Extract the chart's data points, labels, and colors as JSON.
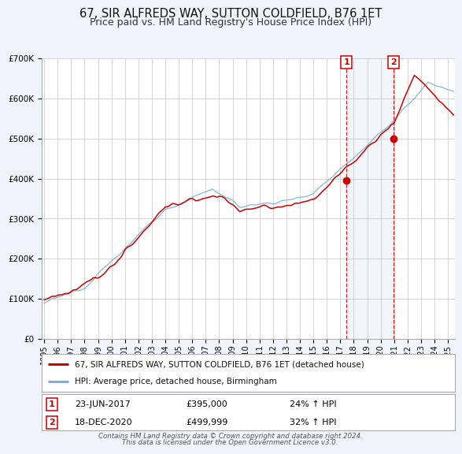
{
  "title": "67, SIR ALFREDS WAY, SUTTON COLDFIELD, B76 1ET",
  "subtitle": "Price paid vs. HM Land Registry's House Price Index (HPI)",
  "ylim": [
    0,
    700000
  ],
  "yticks": [
    0,
    100000,
    200000,
    300000,
    400000,
    500000,
    600000,
    700000
  ],
  "ytick_labels": [
    "£0",
    "£100K",
    "£200K",
    "£300K",
    "£400K",
    "£500K",
    "£600K",
    "£700K"
  ],
  "xlim_start": 1994.8,
  "xlim_end": 2025.5,
  "xtick_years": [
    1995,
    1996,
    1997,
    1998,
    1999,
    2000,
    2001,
    2002,
    2003,
    2004,
    2005,
    2006,
    2007,
    2008,
    2009,
    2010,
    2011,
    2012,
    2013,
    2014,
    2015,
    2016,
    2017,
    2018,
    2019,
    2020,
    2021,
    2022,
    2023,
    2024,
    2025
  ],
  "hpi_line_color": "#7bafd4",
  "price_line_color": "#cc0000",
  "background_color": "#f0f4fa",
  "plot_bg_color": "#ffffff",
  "grid_color": "#cccccc",
  "marker1_date": 2017.47,
  "marker1_value": 395000,
  "marker2_date": 2020.96,
  "marker2_value": 499999,
  "annotation1_date": "23-JUN-2017",
  "annotation1_price": "£395,000",
  "annotation1_hpi": "24% ↑ HPI",
  "annotation2_date": "18-DEC-2020",
  "annotation2_price": "£499,999",
  "annotation2_hpi": "32% ↑ HPI",
  "legend_line1": "67, SIR ALFREDS WAY, SUTTON COLDFIELD, B76 1ET (detached house)",
  "legend_line2": "HPI: Average price, detached house, Birmingham",
  "footer1": "Contains HM Land Registry data © Crown copyright and database right 2024.",
  "footer2": "This data is licensed under the Open Government Licence v3.0.",
  "title_fontsize": 10.5,
  "subtitle_fontsize": 9,
  "tick_fontsize": 7.5
}
